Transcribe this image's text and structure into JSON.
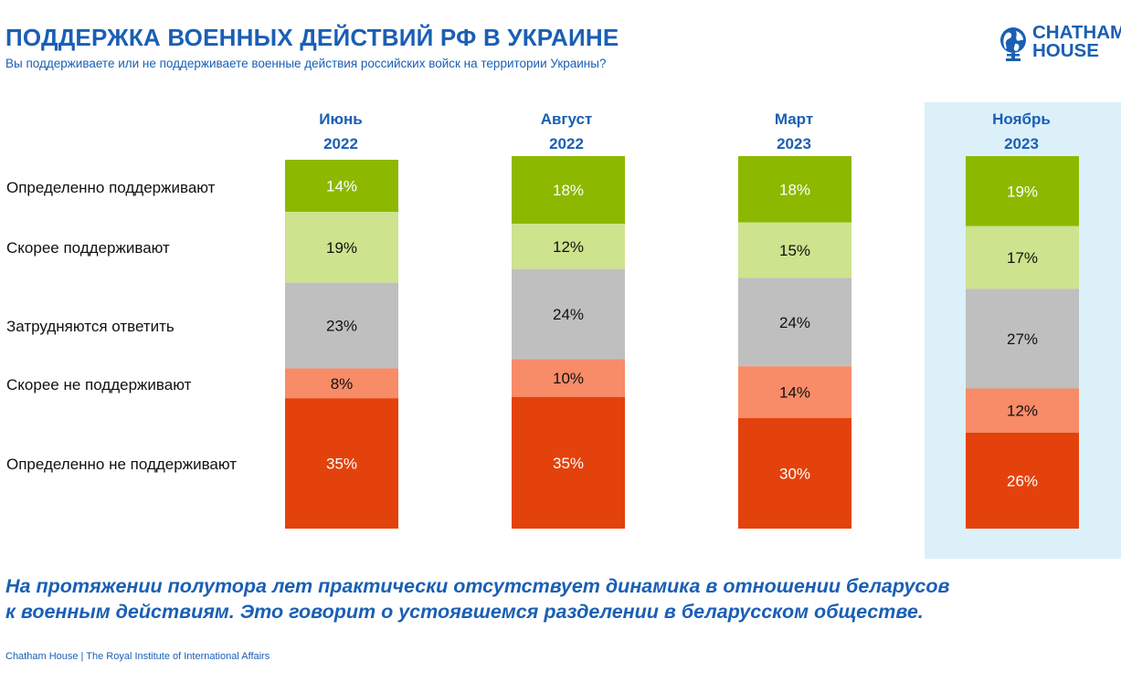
{
  "header": {
    "title": "ПОДДЕРЖКА ВОЕННЫХ ДЕЙСТВИЙ РФ В УКРАИНЕ",
    "subtitle": "Вы поддерживаете или не поддерживаете военные действия российских войск на территории Украины?"
  },
  "logo": {
    "line1": "CHATHAM",
    "line2": "HOUSE"
  },
  "chart_data": {
    "type": "bar",
    "stacked": true,
    "highlight_category": "Ноябрь 2023",
    "categories": [
      {
        "month": "Июнь",
        "year": "2022"
      },
      {
        "month": "Август",
        "year": "2022"
      },
      {
        "month": "Март",
        "year": "2023"
      },
      {
        "month": "Ноябрь",
        "year": "2023"
      }
    ],
    "series": [
      {
        "name": "Определенно поддерживают",
        "values": [
          14,
          18,
          18,
          19
        ],
        "color": "#8cb800"
      },
      {
        "name": "Скорее поддерживают",
        "values": [
          19,
          12,
          15,
          17
        ],
        "color": "#cde38d"
      },
      {
        "name": "Затрудняются ответить",
        "values": [
          23,
          24,
          24,
          27
        ],
        "color": "#bfbfbf"
      },
      {
        "name": "Скорее не поддерживают",
        "values": [
          8,
          10,
          14,
          12
        ],
        "color": "#f88b68"
      },
      {
        "name": "Определенно не поддерживают",
        "values": [
          35,
          35,
          30,
          26
        ],
        "color": "#e3420c"
      }
    ],
    "label_colors": {
      "light": "#ffffff",
      "dark": "#111111"
    },
    "value_suffix": "%"
  },
  "conclusion": {
    "line1": "На протяжении полутора лет практически отсутствует динамика в отношении беларусов",
    "line2": "к военным действиям. Это говорит о устоявшемся разделении в беларусском обществе."
  },
  "footer": {
    "text": "Chatham House  |  The Royal Institute of International Affairs"
  }
}
